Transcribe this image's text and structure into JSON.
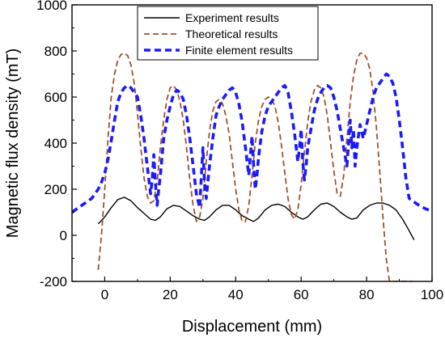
{
  "chart_data": {
    "type": "line",
    "title": "",
    "xlabel": "Displacement (mm)",
    "ylabel": "Magnetic flux density (mT)",
    "xlim": [
      -10,
      100
    ],
    "ylim": [
      -200,
      1000
    ],
    "x_ticks": [
      0,
      20,
      40,
      60,
      80,
      100
    ],
    "y_ticks": [
      -200,
      0,
      200,
      400,
      600,
      800,
      1000
    ],
    "grid": false,
    "legend_position": "top-center",
    "series": [
      {
        "name": "Experiment results",
        "color": "#000000",
        "style": "solid",
        "x": [
          -2,
          0,
          2,
          4,
          6,
          8,
          10,
          12,
          14,
          15.5,
          17,
          19,
          21,
          23,
          25,
          27,
          29,
          30.5,
          32,
          34,
          36,
          38,
          40,
          42,
          44,
          45.5,
          47,
          49,
          51,
          53,
          55,
          57,
          59,
          60.5,
          62,
          64,
          66,
          68,
          70,
          72,
          74,
          75.5,
          77,
          79,
          81,
          83,
          85,
          87,
          89,
          91,
          93,
          94.5
        ],
        "y": [
          50,
          80,
          120,
          155,
          165,
          150,
          120,
          95,
          70,
          65,
          80,
          115,
          130,
          125,
          105,
          85,
          70,
          65,
          80,
          110,
          130,
          130,
          110,
          85,
          70,
          60,
          75,
          110,
          130,
          135,
          125,
          100,
          80,
          70,
          80,
          110,
          135,
          140,
          125,
          100,
          80,
          70,
          75,
          110,
          130,
          140,
          140,
          130,
          110,
          70,
          20,
          -20
        ]
      },
      {
        "name": "Theoretical results",
        "color": "#a0522d",
        "style": "dashed",
        "x": [
          -2,
          -1,
          0,
          1,
          2,
          3,
          4,
          5,
          6,
          7,
          8,
          9,
          10,
          11,
          12,
          13,
          14,
          15,
          16,
          17,
          18,
          19,
          20,
          21,
          22,
          23,
          24,
          25,
          26,
          27,
          28,
          29,
          30,
          31,
          32,
          33,
          34,
          35,
          36,
          37,
          38,
          39,
          40,
          41,
          42,
          43,
          44,
          45,
          46,
          47,
          48,
          49,
          50,
          51,
          52,
          53,
          54,
          55,
          56,
          57,
          58,
          59,
          60,
          61,
          62,
          63,
          64,
          65,
          66,
          67,
          68,
          69,
          70,
          71,
          72,
          73,
          74,
          75,
          76,
          77,
          78,
          79,
          80,
          81,
          82,
          83,
          84,
          85,
          86,
          87,
          88,
          89,
          90,
          91,
          92,
          93,
          94
        ],
        "y": [
          -150,
          0,
          200,
          420,
          600,
          700,
          760,
          785,
          790,
          780,
          740,
          660,
          530,
          380,
          250,
          170,
          140,
          150,
          230,
          380,
          500,
          590,
          640,
          650,
          630,
          580,
          500,
          380,
          240,
          130,
          60,
          80,
          160,
          320,
          450,
          540,
          580,
          590,
          570,
          520,
          440,
          320,
          200,
          110,
          60,
          60,
          130,
          260,
          400,
          500,
          560,
          590,
          600,
          590,
          560,
          490,
          390,
          270,
          160,
          90,
          70,
          110,
          220,
          360,
          490,
          580,
          630,
          650,
          640,
          600,
          520,
          400,
          280,
          180,
          170,
          260,
          420,
          580,
          690,
          760,
          790,
          790,
          770,
          720,
          620,
          470,
          280,
          80,
          -100,
          -200,
          -200,
          -200,
          -200,
          -200,
          -200,
          -200,
          -200
        ]
      },
      {
        "name": "Finite element results",
        "color": "#1a1aff",
        "style": "dashed",
        "x": [
          -10,
          -8,
          -6,
          -4,
          -2,
          -1,
          0,
          1,
          2,
          3,
          4,
          5,
          6,
          7,
          8,
          9,
          10,
          11,
          12,
          13,
          14,
          14.5,
          15,
          15.5,
          16,
          16.5,
          17,
          18,
          19,
          20,
          21,
          22,
          23,
          24,
          25,
          26,
          27,
          28,
          29,
          29.5,
          30,
          30.5,
          31,
          31.5,
          32,
          33,
          34,
          35,
          36,
          37,
          38,
          39,
          40,
          41,
          42,
          43,
          44,
          44.5,
          45,
          45.5,
          46,
          46.5,
          47,
          48,
          49,
          50,
          51,
          52,
          53,
          54,
          55,
          56,
          57,
          58,
          59,
          59.5,
          60,
          60.5,
          61,
          61.5,
          62,
          63,
          64,
          65,
          66,
          67,
          68,
          69,
          70,
          71,
          72,
          73,
          74,
          74.5,
          75,
          75.5,
          76,
          76.5,
          77,
          78,
          79,
          80,
          81,
          82,
          83,
          84,
          85,
          86,
          87,
          88,
          89,
          90,
          91,
          92,
          93,
          94,
          96,
          98,
          100
        ],
        "y": [
          100,
          120,
          140,
          160,
          200,
          230,
          270,
          330,
          410,
          500,
          580,
          620,
          640,
          650,
          640,
          620,
          600,
          520,
          420,
          300,
          180,
          240,
          350,
          220,
          130,
          200,
          260,
          420,
          500,
          560,
          610,
          630,
          620,
          590,
          520,
          420,
          300,
          180,
          120,
          250,
          380,
          230,
          160,
          230,
          300,
          420,
          520,
          560,
          590,
          610,
          630,
          640,
          620,
          570,
          490,
          380,
          260,
          350,
          430,
          300,
          200,
          260,
          340,
          450,
          520,
          560,
          580,
          600,
          620,
          640,
          650,
          620,
          540,
          440,
          320,
          380,
          460,
          320,
          240,
          300,
          380,
          460,
          540,
          590,
          620,
          640,
          650,
          640,
          600,
          540,
          460,
          380,
          300,
          400,
          500,
          380,
          460,
          300,
          380,
          480,
          420,
          480,
          540,
          600,
          640,
          660,
          680,
          700,
          690,
          660,
          600,
          500,
          380,
          250,
          160,
          150,
          130,
          115,
          105
        ]
      }
    ]
  }
}
